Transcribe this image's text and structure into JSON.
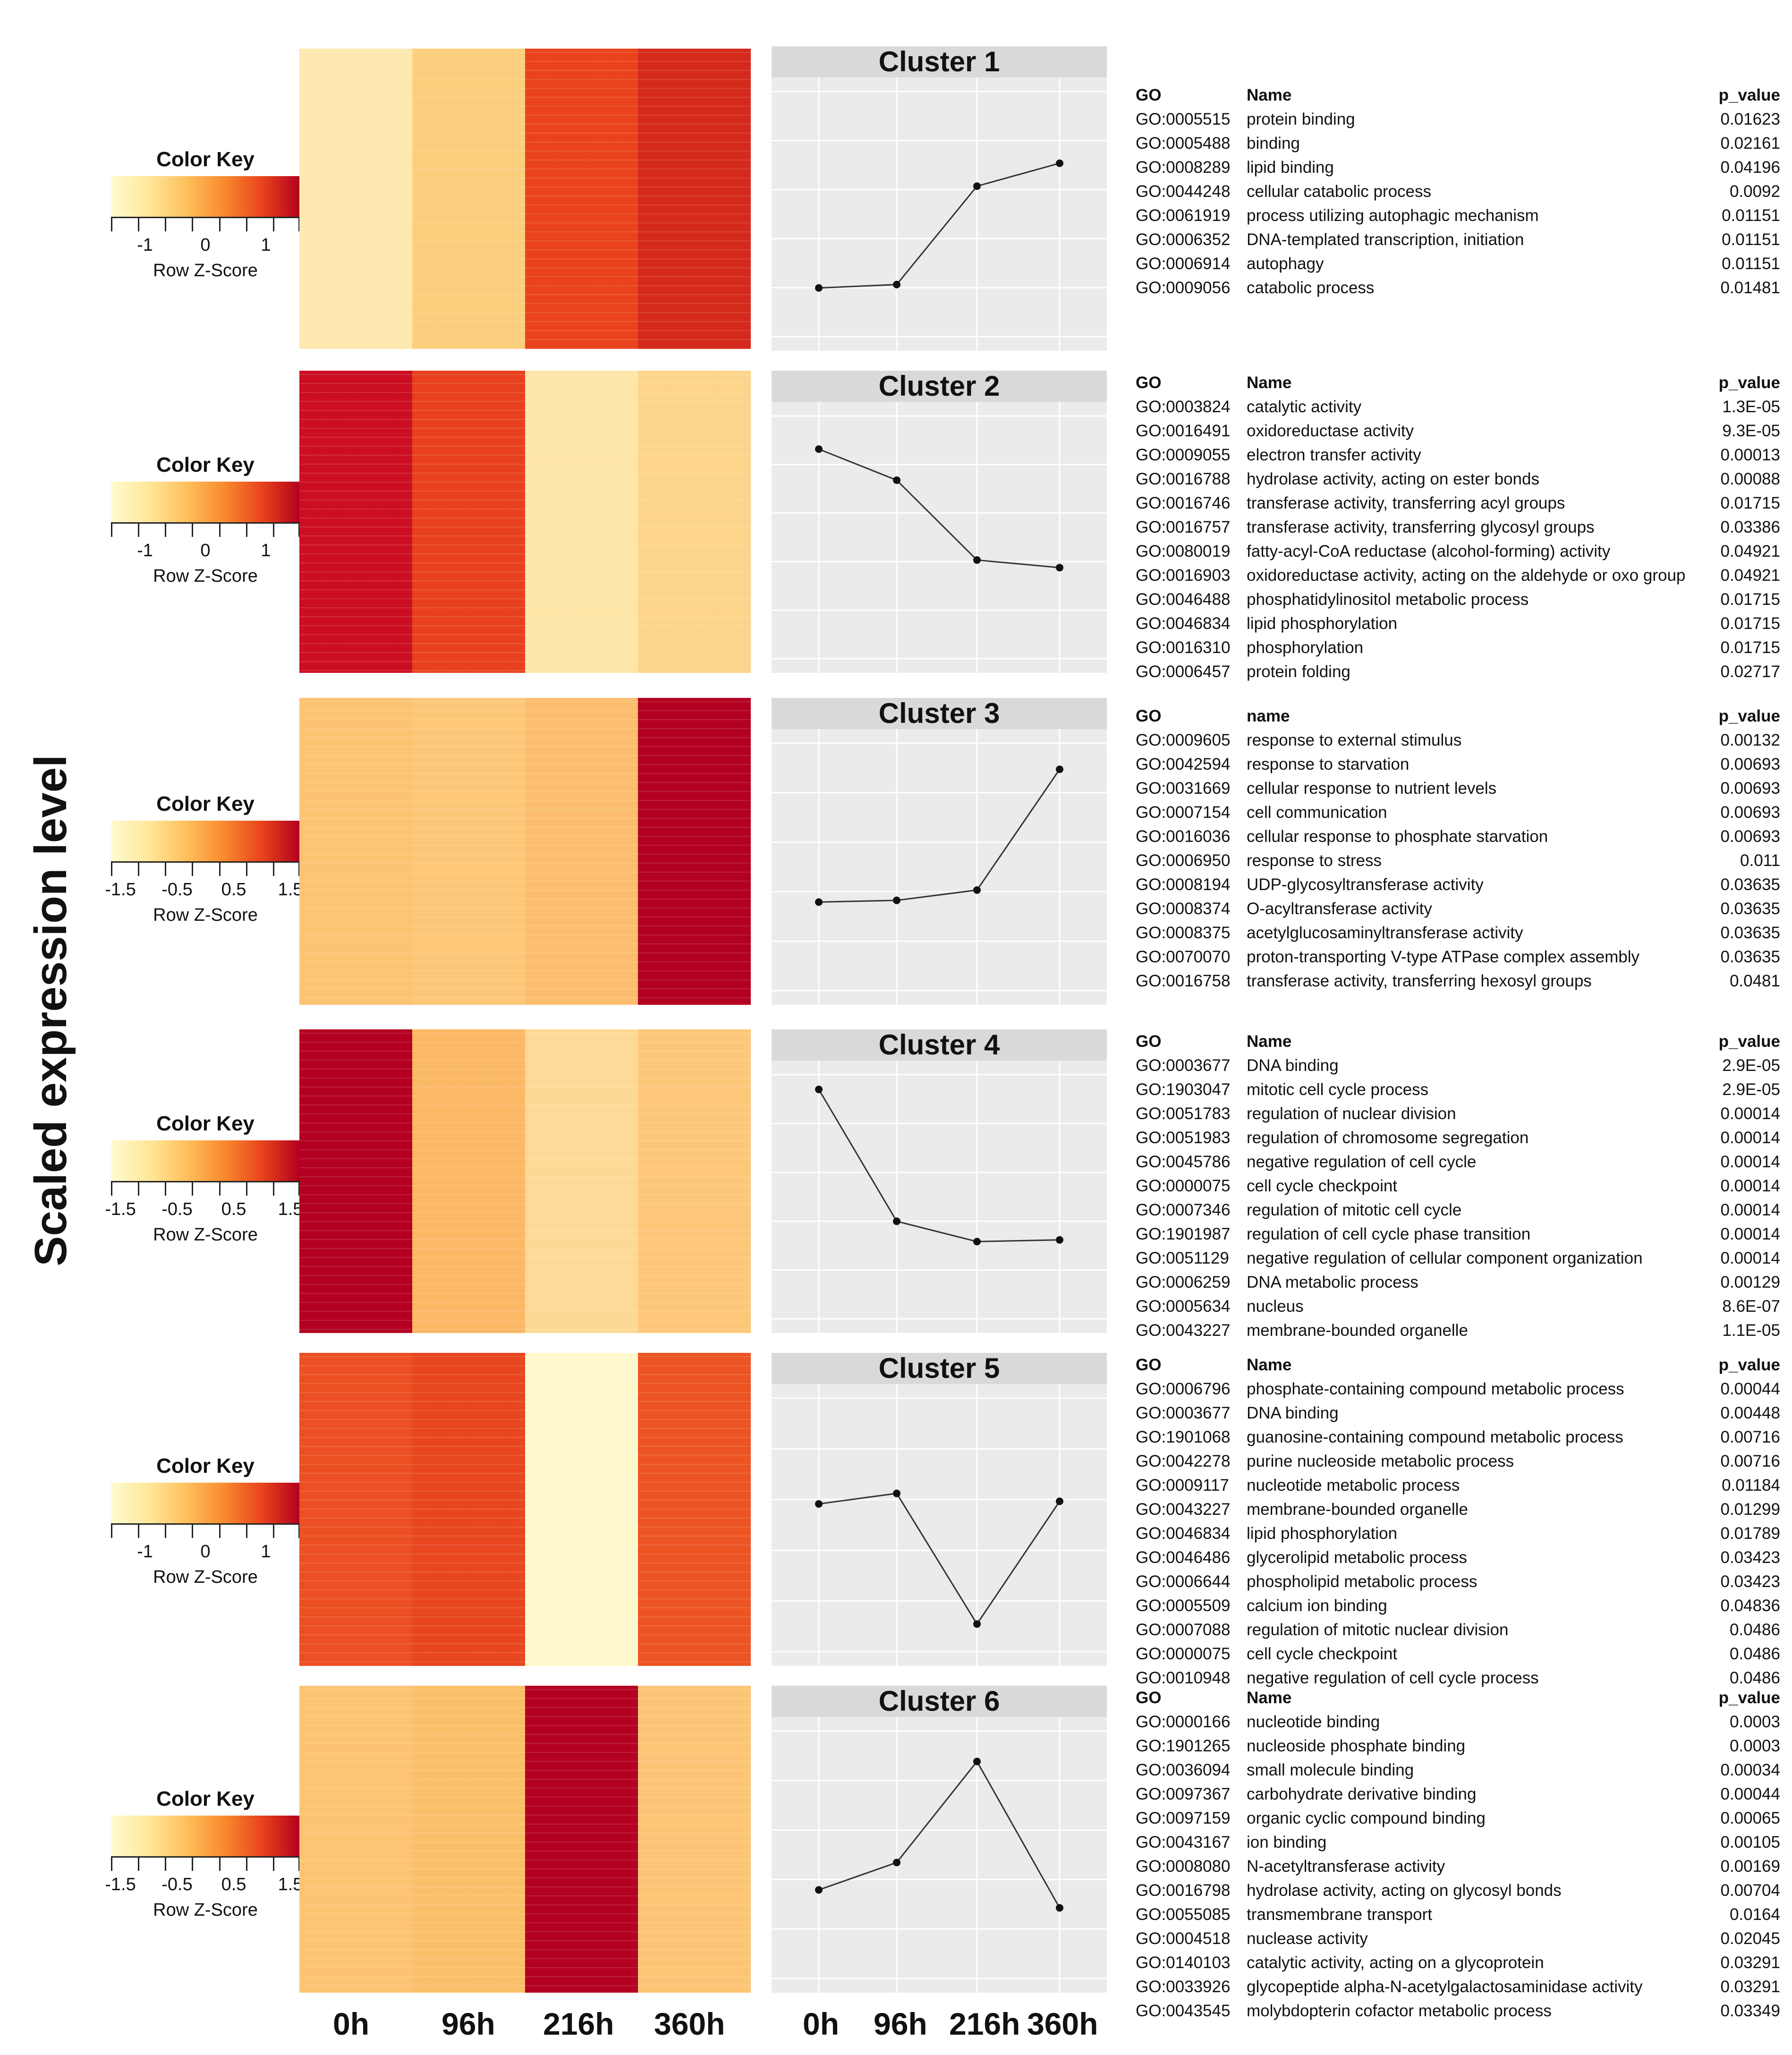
{
  "y_axis_label": "Scaled expression level",
  "color_key": {
    "title": "Color Key",
    "subtitle": "Row Z-Score",
    "colors": [
      "#fffbd0",
      "#ffe79a",
      "#fdc05c",
      "#f98a2e",
      "#e8431c",
      "#b3001e"
    ]
  },
  "x_labels": [
    "0h",
    "96h",
    "216h",
    "360h"
  ],
  "go_headers": {
    "go": "GO",
    "name": "Name",
    "name_lower": "name",
    "p_value": "p_value"
  },
  "chart_data": [
    {
      "type": "line",
      "title": "Cluster 1",
      "categories": [
        "0h",
        "96h",
        "216h",
        "360h"
      ],
      "values": [
        -0.87,
        -0.83,
        0.33,
        0.6
      ],
      "ylim": [
        -1.5,
        1.5
      ],
      "heatmap_colors": [
        "#fde9b0",
        "#fbcf7c",
        "#e8431c",
        "#d42a1c"
      ],
      "color_key_ticks": [
        "-1",
        "0",
        "1"
      ],
      "go_header_name": "Name",
      "go_terms": [
        {
          "go": "GO:0005515",
          "name": "protein binding",
          "p": "0.01623"
        },
        {
          "go": "GO:0005488",
          "name": "binding",
          "p": "0.02161"
        },
        {
          "go": "GO:0008289",
          "name": "lipid binding",
          "p": "0.04196"
        },
        {
          "go": "GO:0044248",
          "name": "cellular catabolic process",
          "p": "0.0092"
        },
        {
          "go": "GO:0061919",
          "name": "process utilizing autophagic mechanism",
          "p": "0.01151"
        },
        {
          "go": "GO:0006352",
          "name": "DNA-templated transcription, initiation",
          "p": "0.01151"
        },
        {
          "go": "GO:0006914",
          "name": "autophagy",
          "p": "0.01151"
        },
        {
          "go": "GO:0009056",
          "name": "catabolic process",
          "p": "0.01481"
        }
      ]
    },
    {
      "type": "line",
      "title": "Cluster 2",
      "categories": [
        "0h",
        "96h",
        "216h",
        "360h"
      ],
      "values": [
        1.05,
        0.68,
        -0.27,
        -0.36
      ],
      "ylim": [
        -1.5,
        1.5
      ],
      "heatmap_colors": [
        "#cc0e22",
        "#e8401e",
        "#fde6a8",
        "#fdd48b"
      ],
      "color_key_ticks": [
        "-1",
        "0",
        "1"
      ],
      "go_header_name": "Name",
      "go_terms": [
        {
          "go": "GO:0003824",
          "name": "catalytic activity",
          "p": "1.3E-05"
        },
        {
          "go": "GO:0016491",
          "name": "oxidoreductase activity",
          "p": "9.3E-05"
        },
        {
          "go": "GO:0009055",
          "name": "electron transfer activity",
          "p": "0.00013"
        },
        {
          "go": "GO:0016788",
          "name": "hydrolase activity, acting on ester bonds",
          "p": "0.00088"
        },
        {
          "go": "GO:0016746",
          "name": "transferase activity, transferring acyl groups",
          "p": "0.01715"
        },
        {
          "go": "GO:0016757",
          "name": "transferase activity, transferring glycosyl groups",
          "p": "0.03386"
        },
        {
          "go": "GO:0080019",
          "name": "fatty-acyl-CoA reductase (alcohol-forming) activity",
          "p": "0.04921"
        },
        {
          "go": "GO:0016903",
          "name": "oxidoreductase activity, acting on the aldehyde or oxo group",
          "p": "0.04921"
        },
        {
          "go": "GO:0046488",
          "name": "phosphatidylinositol metabolic process",
          "p": "0.01715"
        },
        {
          "go": "GO:0046834",
          "name": "lipid phosphorylation",
          "p": "0.01715"
        },
        {
          "go": "GO:0016310",
          "name": "phosphorylation",
          "p": "0.01715"
        },
        {
          "go": "GO:0006457",
          "name": "protein folding",
          "p": "0.02717"
        }
      ]
    },
    {
      "type": "line",
      "title": "Cluster 3",
      "categories": [
        "0h",
        "96h",
        "216h",
        "360h"
      ],
      "values": [
        -0.41,
        -0.39,
        -0.27,
        1.14
      ],
      "ylim": [
        -1.5,
        1.5
      ],
      "heatmap_colors": [
        "#fcc373",
        "#fcc878",
        "#fcbe6e",
        "#b30021"
      ],
      "color_key_ticks": [
        "-1.5",
        "-0.5",
        "0.5",
        "1.5"
      ],
      "go_header_name": "name",
      "go_terms": [
        {
          "go": "GO:0009605",
          "name": "response to external stimulus",
          "p": "0.00132"
        },
        {
          "go": "GO:0042594",
          "name": "response to starvation",
          "p": "0.00693"
        },
        {
          "go": "GO:0031669",
          "name": "cellular response to nutrient levels",
          "p": "0.00693"
        },
        {
          "go": "GO:0007154",
          "name": "cell communication",
          "p": "0.00693"
        },
        {
          "go": "GO:0016036",
          "name": "cellular response to phosphate starvation",
          "p": "0.00693"
        },
        {
          "go": "GO:0006950",
          "name": "response to stress",
          "p": "0.011"
        },
        {
          "go": "GO:0008194",
          "name": "UDP-glycosyltransferase activity",
          "p": "0.03635"
        },
        {
          "go": "GO:0008374",
          "name": "O-acyltransferase activity",
          "p": "0.03635"
        },
        {
          "go": "GO:0008375",
          "name": "acetylglucosaminyltransferase activity",
          "p": "0.03635"
        },
        {
          "go": "GO:0070070",
          "name": "proton-transporting V-type ATPase complex assembly",
          "p": "0.03635"
        },
        {
          "go": "GO:0016758",
          "name": "transferase activity, transferring hexosyl groups",
          "p": "0.0481"
        }
      ]
    },
    {
      "type": "line",
      "title": "Cluster 4",
      "categories": [
        "0h",
        "96h",
        "216h",
        "360h"
      ],
      "values": [
        1.27,
        -0.29,
        -0.53,
        -0.51
      ],
      "ylim": [
        -1.5,
        1.5
      ],
      "heatmap_colors": [
        "#b30021",
        "#fbb865",
        "#fdd996",
        "#fdc77a"
      ],
      "color_key_ticks": [
        "-1.5",
        "-0.5",
        "0.5",
        "1.5"
      ],
      "go_header_name": "Name",
      "go_terms": [
        {
          "go": "GO:0003677",
          "name": "DNA binding",
          "p": "2.9E-05"
        },
        {
          "go": "GO:1903047",
          "name": "mitotic cell cycle process",
          "p": "2.9E-05"
        },
        {
          "go": "GO:0051783",
          "name": "regulation of nuclear division",
          "p": "0.00014"
        },
        {
          "go": "GO:0051983",
          "name": "regulation of chromosome segregation",
          "p": "0.00014"
        },
        {
          "go": "GO:0045786",
          "name": "negative regulation of cell cycle",
          "p": "0.00014"
        },
        {
          "go": "GO:0000075",
          "name": "cell cycle checkpoint",
          "p": "0.00014"
        },
        {
          "go": "GO:0007346",
          "name": "regulation of mitotic cell cycle",
          "p": "0.00014"
        },
        {
          "go": "GO:1901987",
          "name": "regulation of cell cycle phase transition",
          "p": "0.00014"
        },
        {
          "go": "GO:0051129",
          "name": "negative regulation of cellular component organization",
          "p": "0.00014"
        },
        {
          "go": "GO:0006259",
          "name": "DNA metabolic process",
          "p": "0.00129"
        },
        {
          "go": "GO:0005634",
          "name": "nucleus",
          "p": "8.6E-07"
        },
        {
          "go": "GO:0043227",
          "name": "membrane-bounded organelle",
          "p": "1.1E-05"
        }
      ]
    },
    {
      "type": "line",
      "title": "Cluster 5",
      "categories": [
        "0h",
        "96h",
        "216h",
        "360h"
      ],
      "values": [
        0.24,
        0.36,
        -1.13,
        0.27
      ],
      "ylim": [
        -1.5,
        1.5
      ],
      "heatmap_colors": [
        "#ec4f22",
        "#e8461f",
        "#fff8cc",
        "#ed5424"
      ],
      "color_key_ticks": [
        "-1",
        "0",
        "1"
      ],
      "go_header_name": "Name",
      "go_terms": [
        {
          "go": "GO:0006796",
          "name": "phosphate-containing compound metabolic process",
          "p": "0.00044"
        },
        {
          "go": "GO:0003677",
          "name": "DNA binding",
          "p": "0.00448"
        },
        {
          "go": "GO:1901068",
          "name": "guanosine-containing compound metabolic process",
          "p": "0.00716"
        },
        {
          "go": "GO:0042278",
          "name": "purine nucleoside metabolic process",
          "p": "0.00716"
        },
        {
          "go": "GO:0009117",
          "name": "nucleotide metabolic process",
          "p": "0.01184"
        },
        {
          "go": "GO:0043227",
          "name": "membrane-bounded organelle",
          "p": "0.01299"
        },
        {
          "go": "GO:0046834",
          "name": "lipid phosphorylation",
          "p": "0.01789"
        },
        {
          "go": "GO:0046486",
          "name": "glycerolipid metabolic process",
          "p": "0.03423"
        },
        {
          "go": "GO:0006644",
          "name": "phospholipid metabolic process",
          "p": "0.03423"
        },
        {
          "go": "GO:0005509",
          "name": "calcium ion binding",
          "p": "0.04836"
        },
        {
          "go": "GO:0007088",
          "name": "regulation of mitotic nuclear division",
          "p": "0.0486"
        },
        {
          "go": "GO:0000075",
          "name": "cell cycle checkpoint",
          "p": "0.0486"
        },
        {
          "go": "GO:0010948",
          "name": "negative regulation of cell cycle process",
          "p": "0.0486"
        }
      ]
    },
    {
      "type": "line",
      "title": "Cluster 6",
      "categories": [
        "0h",
        "96h",
        "216h",
        "360h"
      ],
      "values": [
        -0.41,
        -0.09,
        1.09,
        -0.62
      ],
      "ylim": [
        -1.5,
        1.5
      ],
      "heatmap_colors": [
        "#fcc373",
        "#fbbf6c",
        "#b30021",
        "#fcc576"
      ],
      "color_key_ticks": [
        "-1.5",
        "-0.5",
        "0.5",
        "1.5"
      ],
      "go_header_name": "Name",
      "go_terms": [
        {
          "go": "GO:0000166",
          "name": "nucleotide binding",
          "p": "0.0003"
        },
        {
          "go": "GO:1901265",
          "name": "nucleoside phosphate binding",
          "p": "0.0003"
        },
        {
          "go": "GO:0036094",
          "name": "small molecule binding",
          "p": "0.00034"
        },
        {
          "go": "GO:0097367",
          "name": "carbohydrate derivative binding",
          "p": "0.00044"
        },
        {
          "go": "GO:0097159",
          "name": "organic cyclic compound binding",
          "p": "0.00065"
        },
        {
          "go": "GO:0043167",
          "name": "ion binding",
          "p": "0.00105"
        },
        {
          "go": "GO:0008080",
          "name": "N-acetyltransferase activity",
          "p": "0.00169"
        },
        {
          "go": "GO:0016798",
          "name": "hydrolase activity, acting on glycosyl bonds",
          "p": "0.00704"
        },
        {
          "go": "GO:0055085",
          "name": "transmembrane transport",
          "p": "0.0164"
        },
        {
          "go": "GO:0004518",
          "name": "nuclease activity",
          "p": "0.02045"
        },
        {
          "go": "GO:0140103",
          "name": "catalytic activity, acting on a glycoprotein",
          "p": "0.03291"
        },
        {
          "go": "GO:0033926",
          "name": "glycopeptide alpha-N-acetylgalactosaminidase activity",
          "p": "0.03291"
        },
        {
          "go": "GO:0043545",
          "name": "molybdopterin cofactor metabolic process",
          "p": "0.03349"
        }
      ]
    }
  ]
}
